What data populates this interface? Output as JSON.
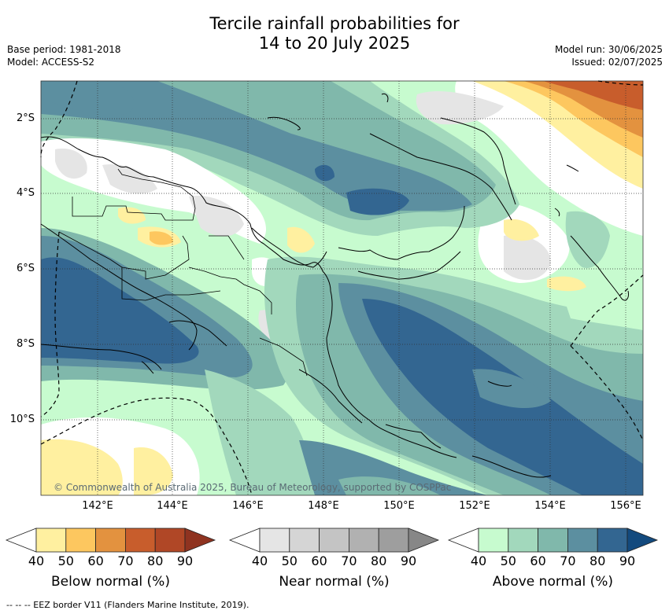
{
  "title_line1": "Tercile rainfall probabilities for",
  "title_line2": "14 to 20 July 2025",
  "meta_left": {
    "base_period": "Base period: 1981-2018",
    "model": "Model: ACCESS-S2"
  },
  "meta_right": {
    "model_run": "Model run: 30/06/2025",
    "issued": "Issued: 02/07/2025"
  },
  "credit": "© Commonwealth of Australia 2025, Bureau of Meteorology, supported by COSPPac",
  "lat_labels": [
    "2°S",
    "4°S",
    "6°S",
    "8°S",
    "10°S"
  ],
  "lon_labels": [
    "142°E",
    "144°E",
    "146°E",
    "148°E",
    "150°E",
    "152°E",
    "154°E",
    "156°E"
  ],
  "legends": [
    {
      "label": "Below normal (%)",
      "ticks": [
        "40",
        "50",
        "60",
        "70",
        "80",
        "90"
      ],
      "colors": [
        "#fff0a0",
        "#fdc75f",
        "#e3923f",
        "#c85d2c",
        "#b04726",
        "#8f3320"
      ]
    },
    {
      "label": "Near normal (%)",
      "ticks": [
        "40",
        "50",
        "60",
        "70",
        "80",
        "90"
      ],
      "colors": [
        "#e5e5e5",
        "#d5d5d5",
        "#c4c4c4",
        "#b1b1b1",
        "#9e9e9e",
        "#878787"
      ]
    },
    {
      "label": "Above normal (%)",
      "ticks": [
        "40",
        "50",
        "60",
        "70",
        "80",
        "90"
      ],
      "colors": [
        "#c7fbcf",
        "#a2d8bc",
        "#80b8ab",
        "#5c8fa0",
        "#336691",
        "#134a7e"
      ]
    }
  ],
  "footer": "--  --  -- EEZ border V11 (Flanders Marine Institute, 2019)."
}
